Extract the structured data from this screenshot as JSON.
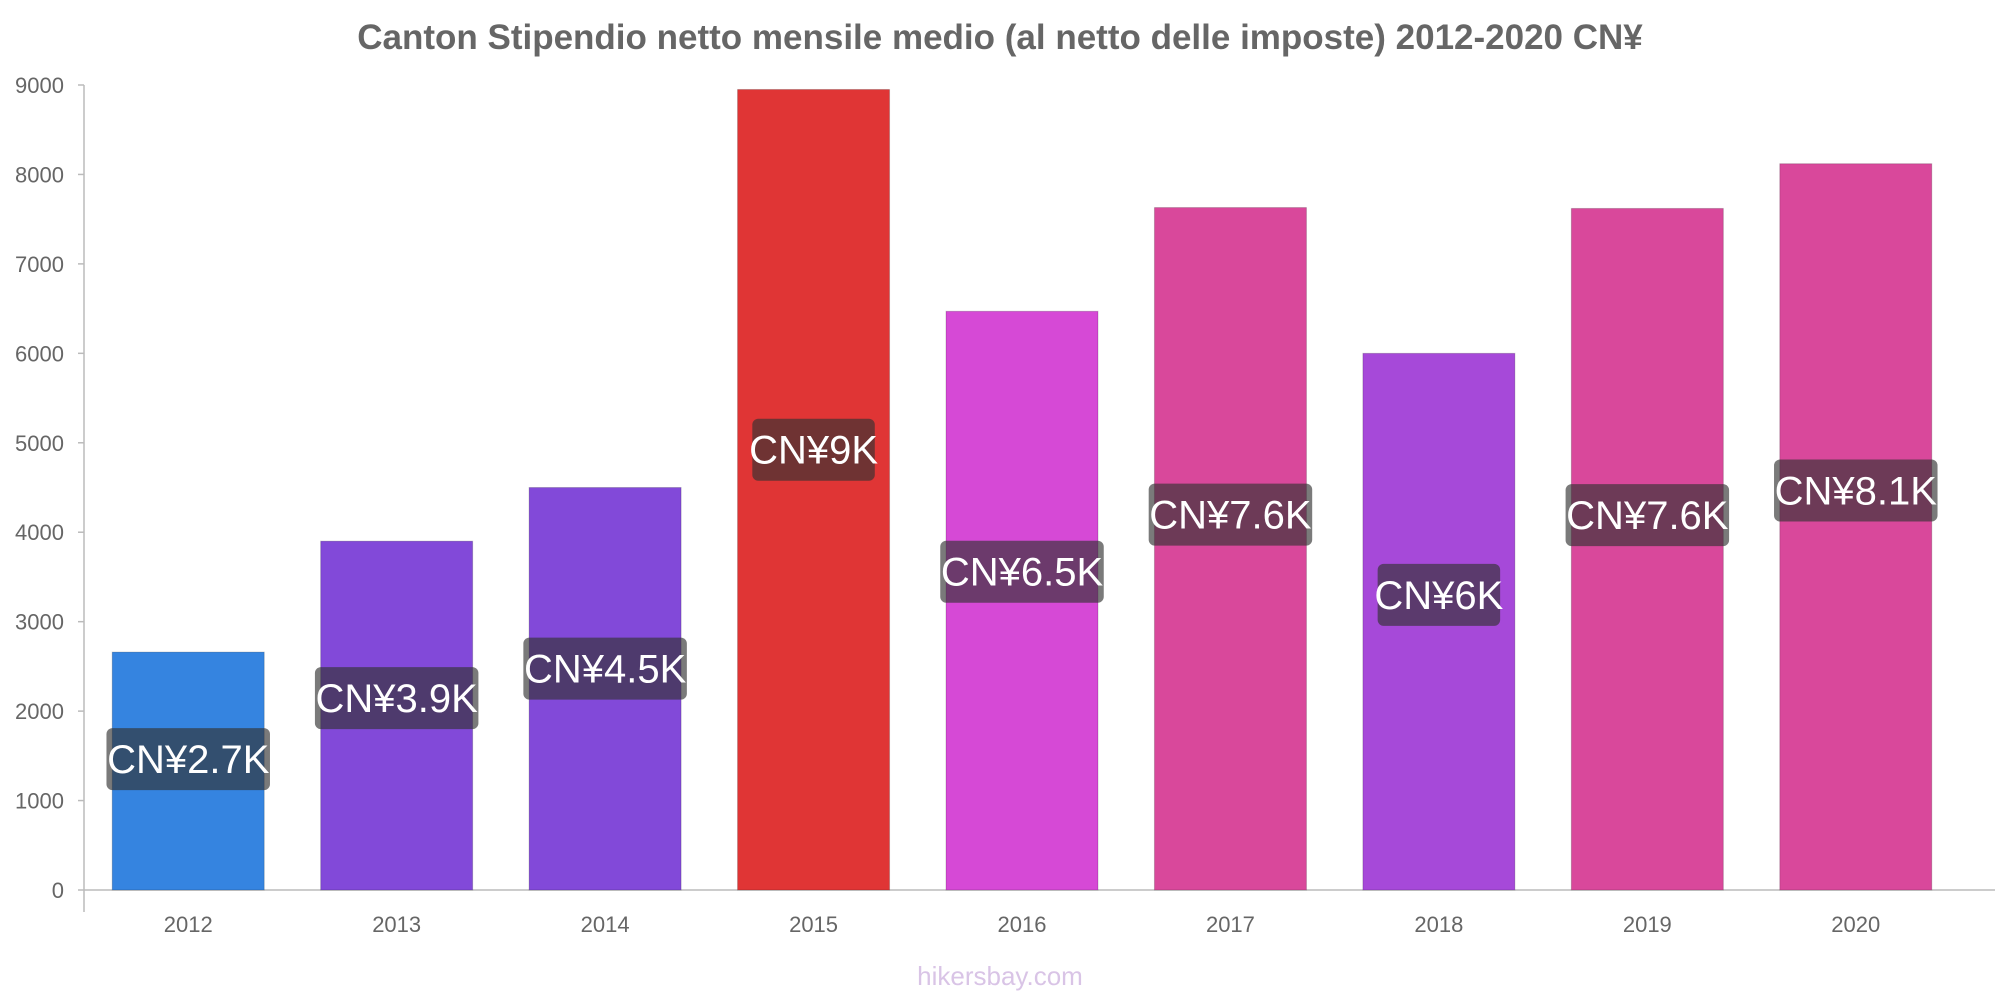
{
  "chart_data": {
    "type": "bar",
    "title": "Canton Stipendio netto mensile medio (al netto delle imposte) 2012-2020 CN¥",
    "categories": [
      "2012",
      "2013",
      "2014",
      "2015",
      "2016",
      "2017",
      "2018",
      "2019",
      "2020"
    ],
    "values": [
      2660,
      3900,
      4500,
      8950,
      6470,
      7630,
      6000,
      7620,
      8120
    ],
    "data_labels": [
      "CN¥2.7K",
      "CN¥3.9K",
      "CN¥4.5K",
      "CN¥9K",
      "CN¥6.5K",
      "CN¥7.6K",
      "CN¥6K",
      "CN¥7.6K",
      "CN¥8.1K"
    ],
    "colors": [
      "#3584e0",
      "#8249d9",
      "#8249d9",
      "#e03535",
      "#d649d6",
      "#d9489b",
      "#a649d9",
      "#d9489b",
      "#d9489b"
    ],
    "label_bg_colors": [
      "#1d4577",
      "#412473",
      "#412473",
      "#731d1d",
      "#732373",
      "#732456",
      "#522573",
      "#732456",
      "#732456"
    ],
    "y_ticks": [
      0,
      1000,
      2000,
      3000,
      4000,
      5000,
      6000,
      7000,
      8000,
      9000
    ],
    "ylim": [
      0,
      9000
    ],
    "xlabel": "",
    "ylabel": "",
    "grid": false,
    "legend": "none"
  },
  "watermark": "hikersbay.com"
}
